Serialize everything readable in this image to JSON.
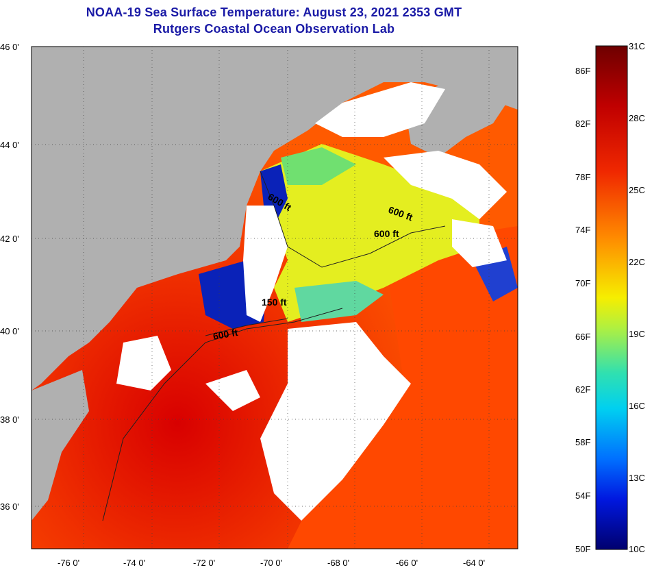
{
  "title": {
    "line1": "NOAA-19 Sea Surface Temperature:  August 23, 2021 2353 GMT",
    "line2": "Rutgers Coastal Ocean Observation Lab"
  },
  "map": {
    "lat_labels": [
      "46 0'",
      "44 0'",
      "42 0'",
      "40 0'",
      "38 0'",
      "36 0'"
    ],
    "lon_labels": [
      "-76 0'",
      "-74 0'",
      "-72 0'",
      "-70 0'",
      "-68 0'",
      "-66 0'",
      "-64 0'"
    ],
    "contour_labels": [
      "600 ft",
      "600 ft",
      "600 ft",
      "150 ft",
      "600 ft"
    ]
  },
  "colorbar": {
    "fahrenheit_labels": [
      "86F",
      "82F",
      "78F",
      "74F",
      "70F",
      "66F",
      "62F",
      "58F",
      "54F",
      "50F"
    ],
    "celsius_labels": [
      "31C",
      "28C",
      "25C",
      "22C",
      "19C",
      "16C",
      "13C",
      "10C"
    ],
    "colors": [
      "#6e0000",
      "#b40000",
      "#e82000",
      "#ff5a00",
      "#ff9a00",
      "#ffd200",
      "#f4f400",
      "#a8f040",
      "#40e0a0",
      "#00d2e6",
      "#0090ff",
      "#0040f0",
      "#0000b0",
      "#00006e"
    ]
  },
  "colors": {
    "land": "#b0b0b0",
    "cloud": "#ffffff",
    "title": "#1a1aa6",
    "warm_water": "#ff4a00",
    "cool_water": "#e8f020",
    "cold_water": "#0020b0"
  }
}
